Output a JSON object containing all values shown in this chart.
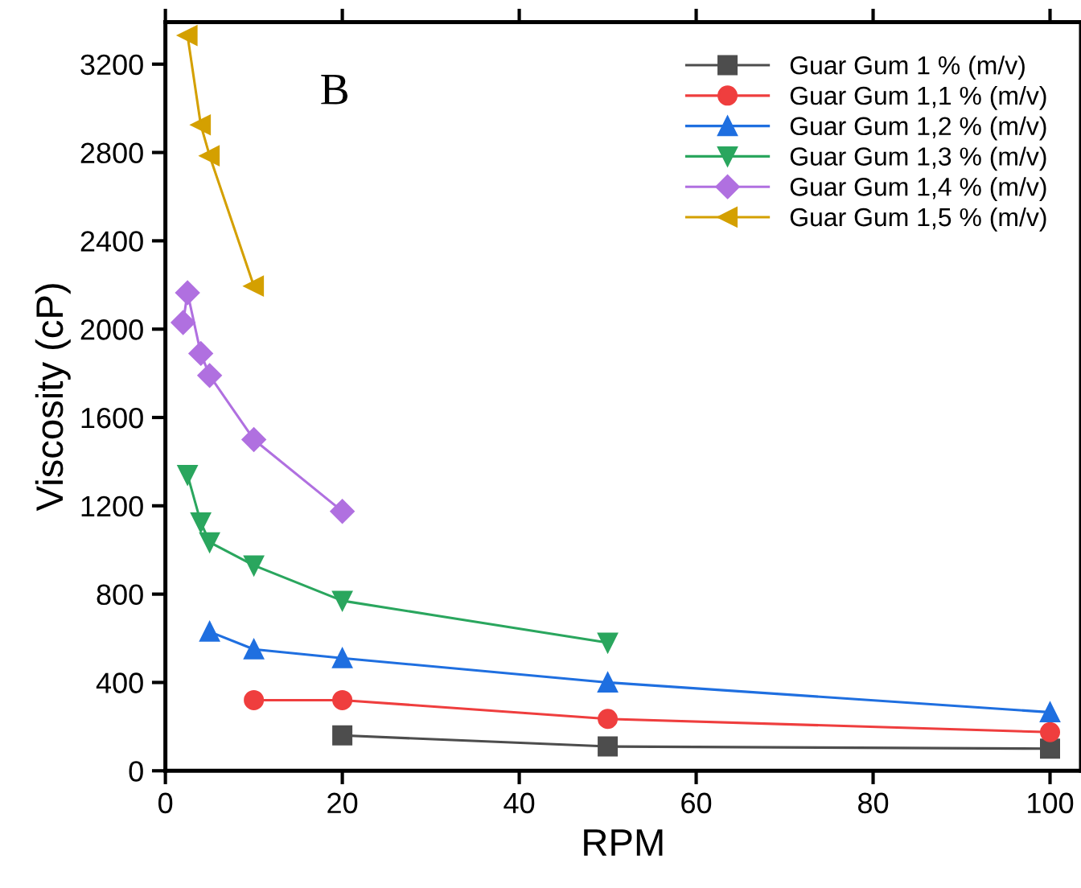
{
  "chart_data": {
    "type": "line",
    "xlabel": "RPM",
    "ylabel": "Viscosity (cP)",
    "annotations": [
      "B"
    ],
    "xlim": [
      0,
      103.5
    ],
    "xticks": [
      0,
      20,
      40,
      60,
      80,
      100
    ],
    "ylim": [
      0,
      3390
    ],
    "yticks": [
      0,
      400,
      800,
      1200,
      1600,
      2000,
      2400,
      2800,
      3200
    ],
    "grid": false,
    "legend": "top right",
    "series": [
      {
        "name": "Guar Gum 1 % (m/v)",
        "color": "#4d4d4d",
        "marker": "square",
        "x": [
          20,
          50,
          100
        ],
        "values": [
          160,
          110,
          100
        ]
      },
      {
        "name": "Guar Gum 1,1 % (m/v)",
        "color": "#ef3e3e",
        "marker": "circle",
        "x": [
          10,
          20,
          50,
          100
        ],
        "values": [
          320,
          320,
          235,
          175
        ]
      },
      {
        "name": "Guar Gum 1,2 % (m/v)",
        "color": "#1f6fe0",
        "marker": "triangle",
        "x": [
          5,
          10,
          20,
          50,
          100
        ],
        "values": [
          630,
          550,
          510,
          400,
          265
        ]
      },
      {
        "name": "Guar Gum 1,3 % (m/v)",
        "color": "#2aa65e",
        "marker": "triangle-down",
        "x": [
          2.5,
          4,
          5,
          10,
          20,
          50
        ],
        "values": [
          1340,
          1125,
          1035,
          930,
          770,
          580
        ]
      },
      {
        "name": "Guar Gum 1,4 % (m/v)",
        "color": "#b070e0",
        "marker": "diamond",
        "x": [
          2,
          2.5,
          4,
          5,
          10,
          20
        ],
        "values": [
          2030,
          2165,
          1890,
          1790,
          1500,
          1175
        ]
      },
      {
        "name": "Guar Gum 1,5 % (m/v)",
        "color": "#d4a000",
        "marker": "triangle-left",
        "x": [
          2.5,
          4,
          5,
          10
        ],
        "values": [
          3330,
          2925,
          2785,
          2195
        ]
      }
    ]
  }
}
